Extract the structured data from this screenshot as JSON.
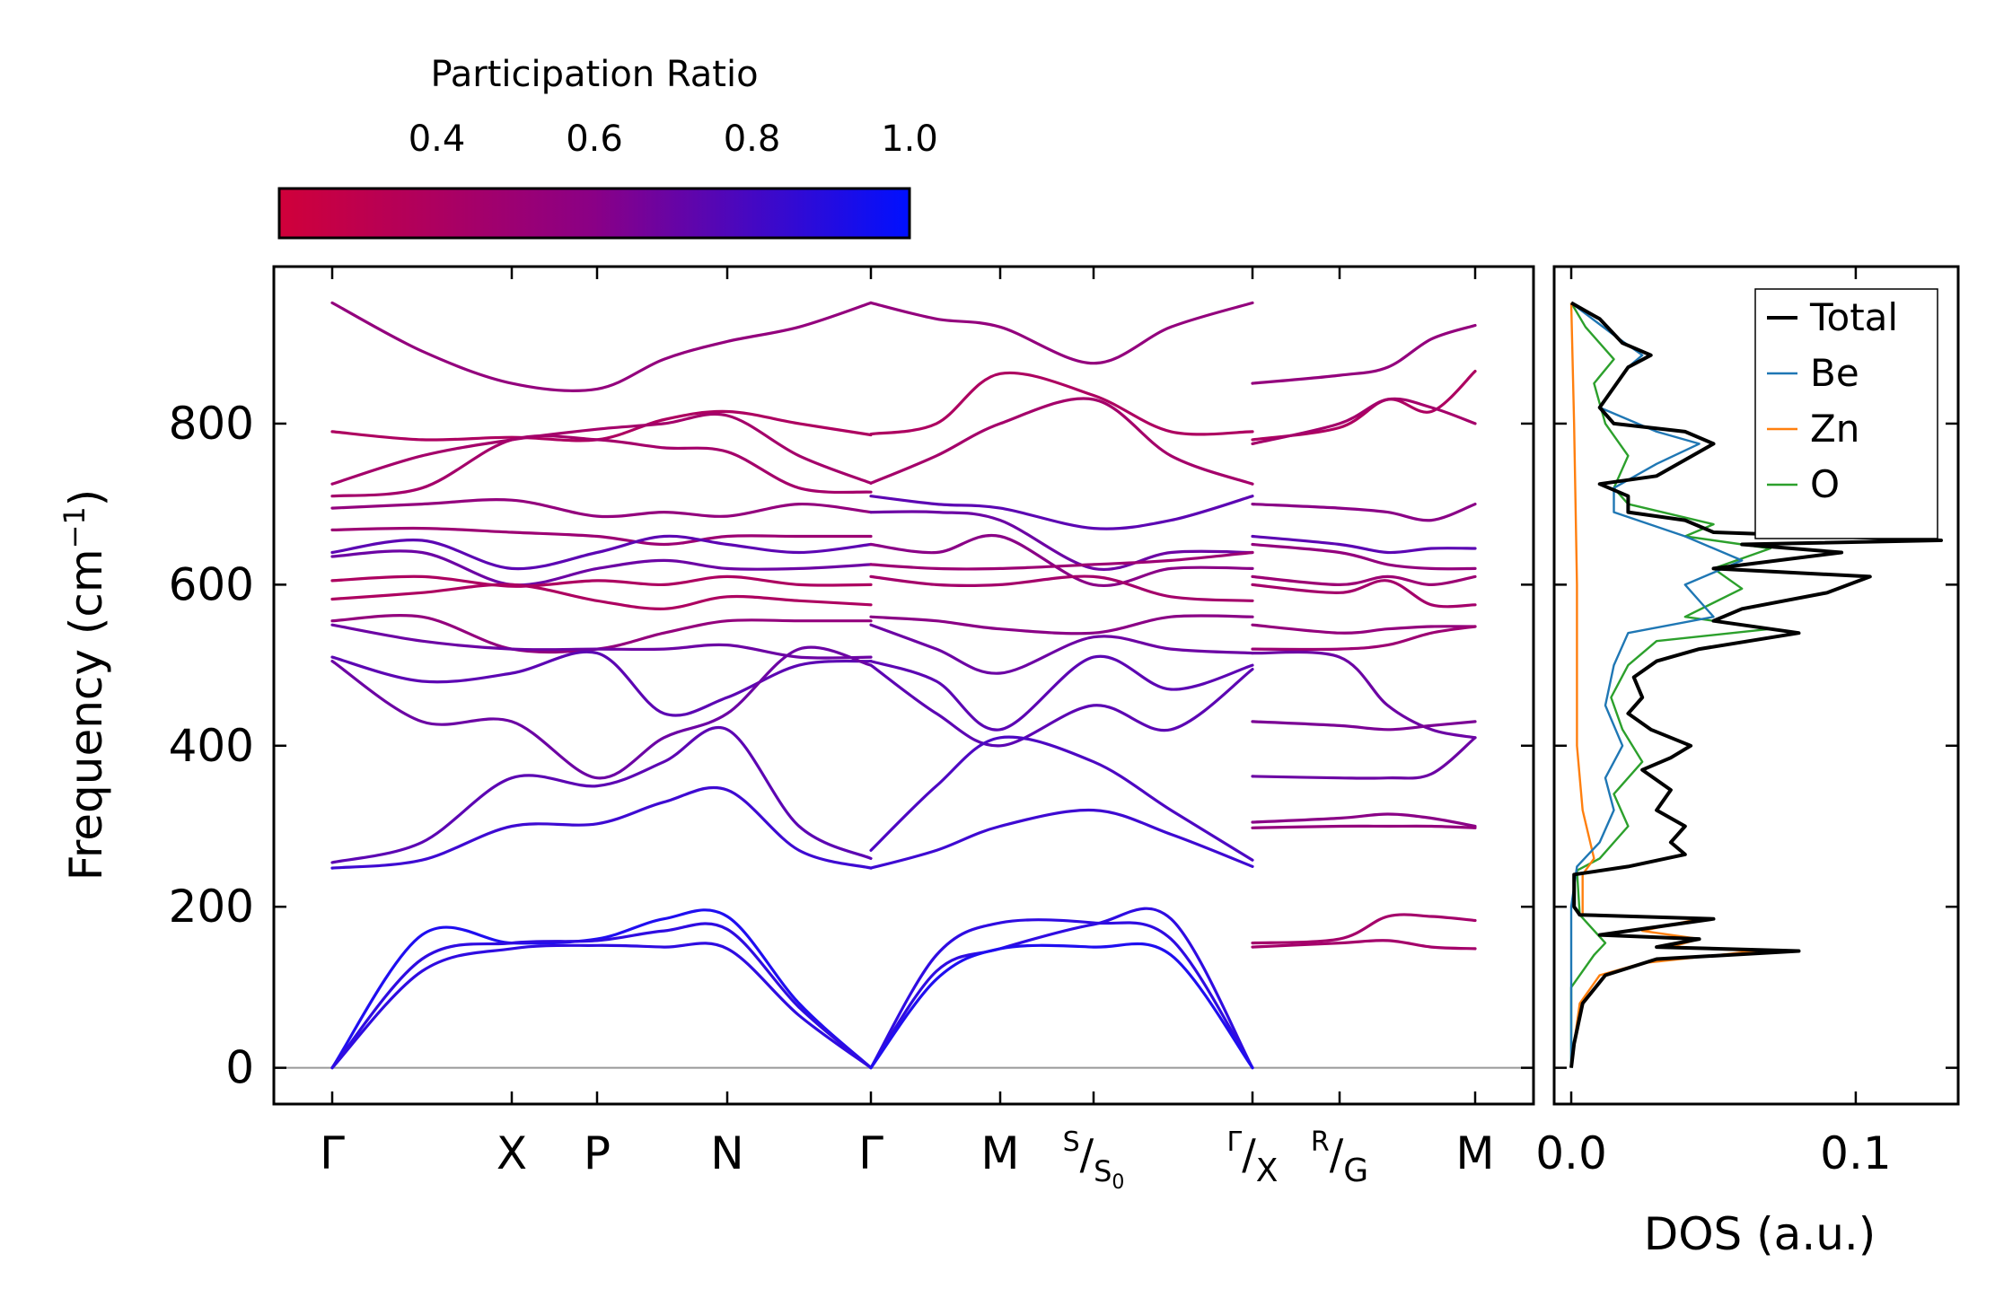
{
  "chart_data": [
    {
      "type": "line",
      "title": "",
      "ylabel": "Frequency (cm⁻¹)",
      "ylim": [
        -45,
        995
      ],
      "yticks": [
        0,
        200,
        400,
        600,
        800
      ],
      "ytick_labels": [
        "0",
        "200",
        "400",
        "600",
        "800"
      ],
      "kpath": {
        "segments": [
          {
            "from": "Γ",
            "to": "X"
          },
          {
            "from": "X",
            "to": "P"
          },
          {
            "from": "P",
            "to": "N"
          },
          {
            "from": "N",
            "to": "Γ"
          },
          {
            "from": "Γ",
            "to": "M"
          },
          {
            "from": "M",
            "to": "S"
          },
          {
            "from": "S0",
            "to": "Γ"
          },
          {
            "from": "X",
            "to": "R"
          },
          {
            "from": "G",
            "to": "M"
          }
        ],
        "x_positions": [
          0,
          1.0,
          1.48,
          2.2,
          3.0,
          3.73,
          4.25,
          5.38,
          5.86,
          7.1
        ],
        "labels": [
          "Γ",
          "X",
          "P",
          "N",
          "Γ",
          "M",
          "S/S₀",
          "Γ/X",
          "R/G",
          "M"
        ],
        "breaks": [
          3.0,
          5.38
        ]
      },
      "colorbar": {
        "label": "Participation Ratio",
        "range": [
          0.2,
          1.0
        ],
        "ticks": [
          0.4,
          0.6,
          0.8,
          1.0
        ],
        "tick_labels": [
          "0.4",
          "0.6",
          "0.8",
          "1.0"
        ],
        "color_low": "#d0003a",
        "color_mid": "#8a0086",
        "color_high": "#0010ff"
      },
      "bands": {
        "acoustic_max": [
          185,
          160,
          150
        ],
        "optical_gamma_values": [
          950,
          790,
          725,
          710,
          695,
          668,
          640,
          635,
          605,
          582,
          555,
          550,
          510,
          505,
          255,
          245
        ],
        "notes": "Phonon dispersion; 3 acoustic branches from 0 at Γ to ~150-190 cm⁻¹; gap between ~190 and ~245 cm⁻¹; optical branches ~245-950 cm⁻¹."
      }
    },
    {
      "type": "line",
      "xlabel": "DOS (a.u.)",
      "xlim": [
        -0.006,
        0.136
      ],
      "xticks": [
        0.0,
        0.1
      ],
      "xtick_labels": [
        "0.0",
        "0.1"
      ],
      "ylim": [
        -45,
        995
      ],
      "legend": {
        "placement": "top-right",
        "entries": [
          "Total",
          "Be",
          "Zn",
          "O"
        ]
      },
      "series": [
        {
          "name": "Total",
          "color": "#000000",
          "points": [
            [
              0,
              0
            ],
            [
              0.001,
              30
            ],
            [
              0.004,
              80
            ],
            [
              0.012,
              115
            ],
            [
              0.03,
              135
            ],
            [
              0.08,
              145
            ],
            [
              0.03,
              150
            ],
            [
              0.045,
              160
            ],
            [
              0.01,
              165
            ],
            [
              0.05,
              185
            ],
            [
              0.003,
              190
            ],
            [
              0.001,
              200
            ],
            [
              0.001,
              240
            ],
            [
              0.02,
              250
            ],
            [
              0.04,
              265
            ],
            [
              0.035,
              280
            ],
            [
              0.04,
              300
            ],
            [
              0.03,
              320
            ],
            [
              0.035,
              345
            ],
            [
              0.025,
              370
            ],
            [
              0.035,
              385
            ],
            [
              0.042,
              400
            ],
            [
              0.028,
              420
            ],
            [
              0.02,
              440
            ],
            [
              0.025,
              460
            ],
            [
              0.022,
              485
            ],
            [
              0.03,
              505
            ],
            [
              0.045,
              520
            ],
            [
              0.08,
              540
            ],
            [
              0.05,
              555
            ],
            [
              0.06,
              570
            ],
            [
              0.09,
              590
            ],
            [
              0.105,
              610
            ],
            [
              0.05,
              620
            ],
            [
              0.095,
              640
            ],
            [
              0.06,
              650
            ],
            [
              0.13,
              655
            ],
            [
              0.05,
              665
            ],
            [
              0.04,
              680
            ],
            [
              0.02,
              690
            ],
            [
              0.02,
              710
            ],
            [
              0.01,
              725
            ],
            [
              0.03,
              735
            ],
            [
              0.05,
              775
            ],
            [
              0.04,
              790
            ],
            [
              0.015,
              800
            ],
            [
              0.01,
              820
            ],
            [
              0.02,
              870
            ],
            [
              0.028,
              885
            ],
            [
              0.018,
              900
            ],
            [
              0.01,
              930
            ],
            [
              0.0,
              950
            ]
          ]
        },
        {
          "name": "Be",
          "color": "#1f77b4",
          "points": [
            [
              0,
              0
            ],
            [
              0,
              200
            ],
            [
              0.002,
              250
            ],
            [
              0.01,
              280
            ],
            [
              0.015,
              320
            ],
            [
              0.012,
              360
            ],
            [
              0.018,
              400
            ],
            [
              0.012,
              450
            ],
            [
              0.015,
              500
            ],
            [
              0.02,
              540
            ],
            [
              0.05,
              560
            ],
            [
              0.04,
              600
            ],
            [
              0.06,
              630
            ],
            [
              0.04,
              660
            ],
            [
              0.015,
              690
            ],
            [
              0.015,
              720
            ],
            [
              0.03,
              750
            ],
            [
              0.045,
              775
            ],
            [
              0.03,
              790
            ],
            [
              0.01,
              820
            ],
            [
              0.02,
              870
            ],
            [
              0.025,
              885
            ],
            [
              0.015,
              910
            ],
            [
              0.0,
              950
            ]
          ]
        },
        {
          "name": "Zn",
          "color": "#ff7f0e",
          "points": [
            [
              0,
              0
            ],
            [
              0.001,
              30
            ],
            [
              0.003,
              80
            ],
            [
              0.01,
              115
            ],
            [
              0.025,
              130
            ],
            [
              0.065,
              145
            ],
            [
              0.035,
              150
            ],
            [
              0.045,
              160
            ],
            [
              0.025,
              170
            ],
            [
              0.045,
              185
            ],
            [
              0.004,
              190
            ],
            [
              0.004,
              240
            ],
            [
              0.008,
              260
            ],
            [
              0.004,
              320
            ],
            [
              0.002,
              400
            ],
            [
              0.002,
              600
            ],
            [
              0.001,
              800
            ],
            [
              0.0,
              950
            ]
          ]
        },
        {
          "name": "O",
          "color": "#2ca02c",
          "points": [
            [
              0,
              0
            ],
            [
              0.0,
              100
            ],
            [
              0.008,
              140
            ],
            [
              0.012,
              155
            ],
            [
              0.003,
              190
            ],
            [
              0.002,
              245
            ],
            [
              0.01,
              260
            ],
            [
              0.02,
              300
            ],
            [
              0.015,
              340
            ],
            [
              0.025,
              380
            ],
            [
              0.018,
              420
            ],
            [
              0.014,
              460
            ],
            [
              0.02,
              500
            ],
            [
              0.03,
              530
            ],
            [
              0.07,
              545
            ],
            [
              0.04,
              560
            ],
            [
              0.06,
              595
            ],
            [
              0.05,
              620
            ],
            [
              0.07,
              645
            ],
            [
              0.04,
              660
            ],
            [
              0.05,
              675
            ],
            [
              0.02,
              700
            ],
            [
              0.015,
              720
            ],
            [
              0.02,
              760
            ],
            [
              0.012,
              800
            ],
            [
              0.008,
              850
            ],
            [
              0.015,
              880
            ],
            [
              0.005,
              920
            ],
            [
              0.0,
              950
            ]
          ]
        }
      ]
    }
  ]
}
